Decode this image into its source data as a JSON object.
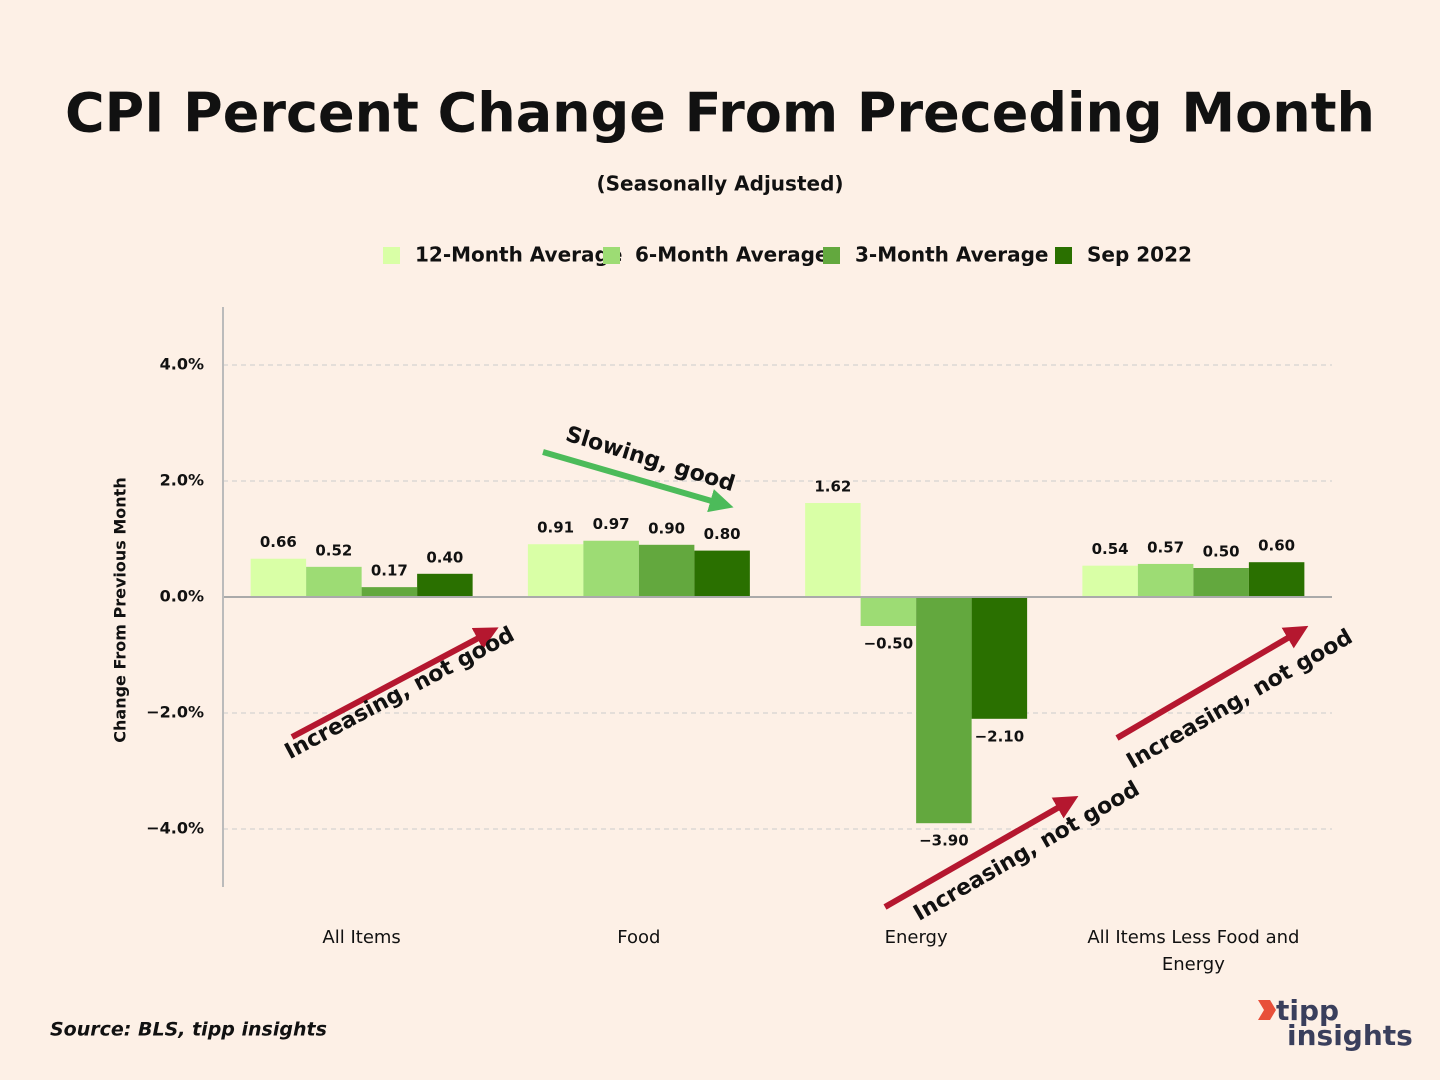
{
  "chart_data": {
    "type": "bar",
    "title": "CPI Percent Change From Preceding Month",
    "subtitle": "(Seasonally Adjusted)",
    "y_label": "Change From Previous Month",
    "categories": [
      "All Items",
      "Food",
      "Energy",
      "All Items Less Food and Energy"
    ],
    "series": [
      {
        "name": "12-Month Average",
        "color": "#d9ffa6",
        "values": [
          0.66,
          0.91,
          1.62,
          0.54
        ],
        "value_labels": [
          "0.66",
          "0.91",
          "1.62",
          "0.54"
        ]
      },
      {
        "name": "6-Month Average",
        "color": "#9ddc74",
        "values": [
          0.52,
          0.97,
          -0.5,
          0.57
        ],
        "value_labels": [
          "0.52",
          "0.97",
          "−0.50",
          "0.57"
        ]
      },
      {
        "name": "3-Month Average",
        "color": "#63a83e",
        "values": [
          0.17,
          0.9,
          -3.9,
          0.5
        ],
        "value_labels": [
          "0.17",
          "0.90",
          "−3.90",
          "0.50"
        ]
      },
      {
        "name": "Sep 2022",
        "color": "#2a7000",
        "values": [
          0.4,
          0.8,
          -2.1,
          0.6
        ],
        "value_labels": [
          "0.40",
          "0.80",
          "−2.10",
          "0.60"
        ]
      }
    ],
    "ylim": [
      -5,
      5
    ],
    "yticks": [
      {
        "value": -4,
        "label": "−4.0%"
      },
      {
        "value": -2,
        "label": "−2.0%"
      },
      {
        "value": 0,
        "label": "0.0%"
      },
      {
        "value": 2,
        "label": "2.0%"
      },
      {
        "value": 4,
        "label": "4.0%"
      }
    ],
    "grid": true,
    "annotations": [
      "Slowing, good",
      "Increasing, not good",
      "Increasing, not good",
      "Increasing, not good"
    ],
    "source": "Source: BLS, tipp insights",
    "logo": [
      "tipp",
      "insights"
    ]
  }
}
